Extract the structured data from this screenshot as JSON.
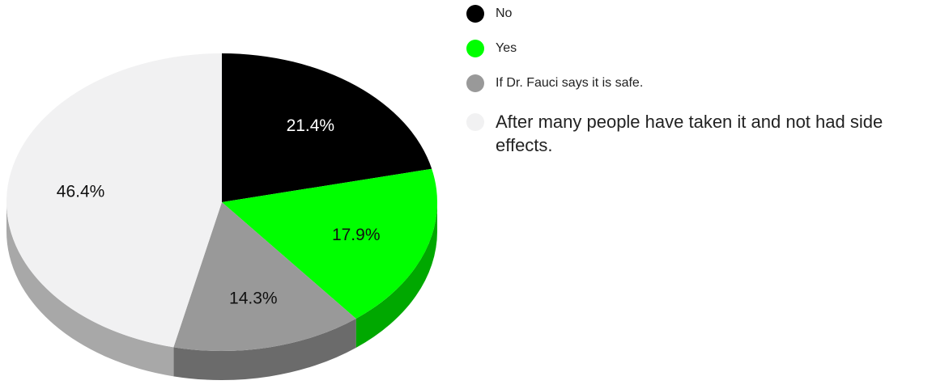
{
  "chart_data": {
    "type": "pie",
    "style": "3d",
    "slices": [
      {
        "label": "No",
        "value": 21.4,
        "display": "21.4%",
        "color": "#000000",
        "side_color": "#000000",
        "text_color": "#ffffff"
      },
      {
        "label": "Yes",
        "value": 17.9,
        "display": "17.9%",
        "color": "#00ff00",
        "side_color": "#00a800",
        "text_color": "#111111"
      },
      {
        "label": "If Dr. Fauci says it is safe.",
        "value": 14.3,
        "display": "14.3%",
        "color": "#999999",
        "side_color": "#6b6b6b",
        "text_color": "#111111"
      },
      {
        "label": "After many people have taken it and not had side effects.",
        "value": 46.4,
        "display": "46.4%",
        "color": "#f1f1f2",
        "side_color": "#a8a8a8",
        "text_color": "#111111"
      }
    ],
    "legend_position": "right"
  }
}
